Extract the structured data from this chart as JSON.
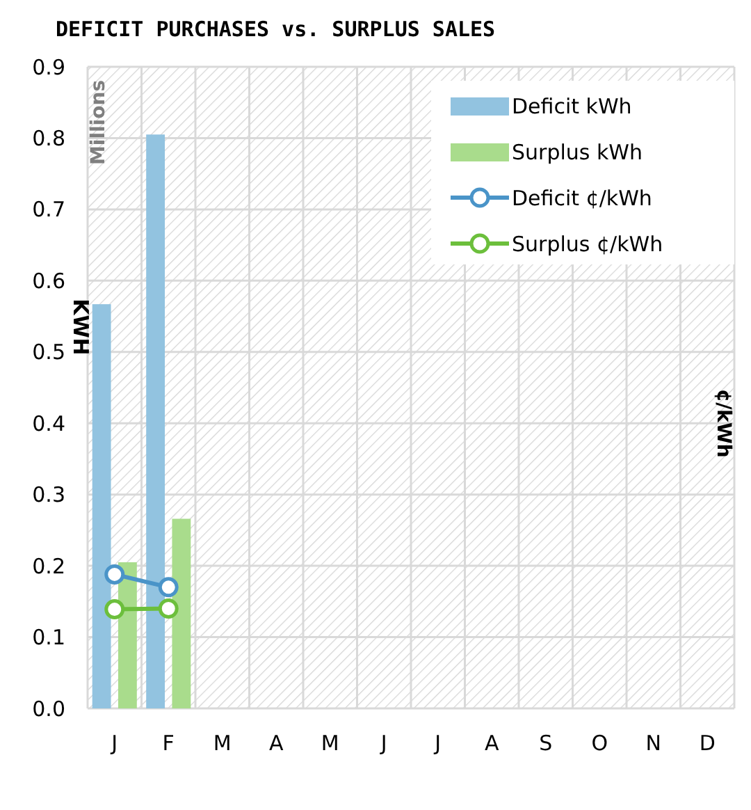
{
  "chart_data": {
    "type": "bar",
    "title": "DEFICIT PURCHASES vs. SURPLUS SALES",
    "ylabel": "KWH",
    "y2label": "¢/kWh",
    "annotations": [
      "Millions"
    ],
    "categories": [
      "J",
      "F",
      "M",
      "A",
      "M",
      "J",
      "J",
      "A",
      "S",
      "O",
      "N",
      "D"
    ],
    "series": [
      {
        "name": "Deficit kWh",
        "color": "#92c3e0",
        "values": [
          0.567,
          0.805,
          null,
          null,
          null,
          null,
          null,
          null,
          null,
          null,
          null,
          null
        ]
      },
      {
        "name": "Surplus kWh",
        "color": "#a9dc8c",
        "values": [
          0.205,
          0.266,
          null,
          null,
          null,
          null,
          null,
          null,
          null,
          null,
          null,
          null
        ]
      },
      {
        "name": "Deficit ¢/kWh",
        "type": "line",
        "color": "#4a94c8",
        "values": [
          0.188,
          0.17,
          null,
          null,
          null,
          null,
          null,
          null,
          null,
          null,
          null,
          null
        ]
      },
      {
        "name": "Surplus ¢/kWh",
        "type": "line",
        "color": "#6cbf3c",
        "values": [
          0.139,
          0.14,
          null,
          null,
          null,
          null,
          null,
          null,
          null,
          null,
          null,
          null
        ]
      }
    ],
    "ylim": [
      0,
      0.9
    ],
    "yticks": [
      {
        "value": 0,
        "label": "0.0"
      },
      0.1,
      0.2,
      0.3,
      0.4,
      0.5,
      0.6,
      0.7,
      0.8,
      0.9
    ],
    "grid": true,
    "legend": "top right",
    "marker": "circle",
    "line_style": "solid"
  }
}
